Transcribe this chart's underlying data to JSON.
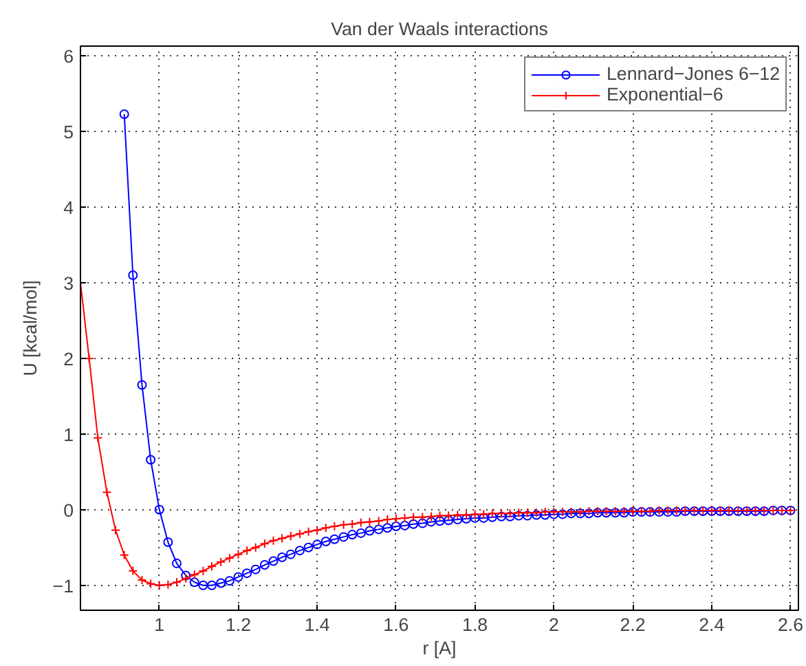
{
  "chart_data": {
    "type": "line",
    "title": "Van der Waals interactions",
    "xlabel": "r [A]",
    "ylabel": "U [kcal/mol]",
    "x": [
      0.8,
      0.822,
      0.844,
      0.867,
      0.889,
      0.911,
      0.933,
      0.956,
      0.978,
      1.0,
      1.022,
      1.044,
      1.067,
      1.089,
      1.111,
      1.133,
      1.156,
      1.178,
      1.2,
      1.222,
      1.244,
      1.267,
      1.289,
      1.311,
      1.333,
      1.356,
      1.378,
      1.4,
      1.422,
      1.444,
      1.467,
      1.489,
      1.511,
      1.533,
      1.556,
      1.578,
      1.6,
      1.622,
      1.644,
      1.667,
      1.689,
      1.711,
      1.733,
      1.756,
      1.778,
      1.8,
      1.822,
      1.844,
      1.867,
      1.889,
      1.911,
      1.933,
      1.956,
      1.978,
      2.0,
      2.022,
      2.044,
      2.067,
      2.089,
      2.111,
      2.133,
      2.156,
      2.178,
      2.2,
      2.222,
      2.244,
      2.267,
      2.289,
      2.311,
      2.333,
      2.356,
      2.378,
      2.4,
      2.422,
      2.444,
      2.467,
      2.489,
      2.511,
      2.533,
      2.556,
      2.578,
      2.6
    ],
    "series": [
      {
        "name": "Lennard−Jones 6−12",
        "color": "#0000ff",
        "marker": "circle",
        "values": [
          null,
          null,
          null,
          null,
          null,
          5.23,
          3.1,
          1.65,
          0.66,
          0.0,
          -0.43,
          -0.71,
          -0.87,
          -0.96,
          -1.0,
          -1.0,
          -0.97,
          -0.94,
          -0.89,
          -0.84,
          -0.79,
          -0.73,
          -0.68,
          -0.63,
          -0.59,
          -0.54,
          -0.5,
          -0.46,
          -0.42,
          -0.39,
          -0.36,
          -0.33,
          -0.31,
          -0.28,
          -0.26,
          -0.24,
          -0.22,
          -0.21,
          -0.19,
          -0.18,
          -0.16,
          -0.15,
          -0.14,
          -0.13,
          -0.12,
          -0.11,
          -0.11,
          -0.1,
          -0.09,
          -0.09,
          -0.08,
          -0.08,
          -0.07,
          -0.07,
          -0.06,
          -0.06,
          -0.05,
          -0.05,
          -0.05,
          -0.04,
          -0.04,
          -0.04,
          -0.04,
          -0.03,
          -0.03,
          -0.03,
          -0.03,
          -0.03,
          -0.03,
          -0.02,
          -0.02,
          -0.02,
          -0.02,
          -0.02,
          -0.02,
          -0.02,
          -0.02,
          -0.02,
          -0.02,
          -0.01,
          -0.01,
          -0.01
        ]
      },
      {
        "name": "Exponential−6",
        "color": "#ff0000",
        "marker": "cross",
        "values": [
          3.0,
          2.0,
          0.95,
          0.23,
          -0.27,
          -0.6,
          -0.81,
          -0.93,
          -0.98,
          -1.0,
          -0.99,
          -0.96,
          -0.91,
          -0.86,
          -0.81,
          -0.75,
          -0.69,
          -0.64,
          -0.59,
          -0.54,
          -0.5,
          -0.45,
          -0.41,
          -0.38,
          -0.35,
          -0.32,
          -0.29,
          -0.27,
          -0.24,
          -0.22,
          -0.2,
          -0.19,
          -0.17,
          -0.16,
          -0.15,
          -0.13,
          -0.12,
          -0.11,
          -0.1,
          -0.1,
          -0.09,
          -0.08,
          -0.08,
          -0.07,
          -0.07,
          -0.06,
          -0.06,
          -0.05,
          -0.05,
          -0.05,
          -0.04,
          -0.04,
          -0.04,
          -0.03,
          -0.03,
          -0.03,
          -0.03,
          -0.03,
          -0.02,
          -0.02,
          -0.02,
          -0.02,
          -0.02,
          -0.02,
          -0.02,
          -0.02,
          -0.01,
          -0.01,
          -0.01,
          -0.01,
          -0.01,
          -0.01,
          -0.01,
          -0.01,
          -0.01,
          -0.01,
          -0.01,
          -0.01,
          -0.01,
          -0.01,
          -0.01,
          -0.01
        ]
      }
    ],
    "xlim": [
      0.8,
      2.62
    ],
    "ylim": [
      -1.33,
      6.13
    ],
    "xticks": [
      1,
      1.2,
      1.4,
      1.6,
      1.8,
      2,
      2.2,
      2.4,
      2.6
    ],
    "yticks": [
      {
        "value": -1,
        "label": "−1"
      },
      0,
      1,
      2,
      3,
      4,
      5,
      6
    ],
    "grid": true,
    "legend": "top right",
    "line_style": "solid"
  }
}
